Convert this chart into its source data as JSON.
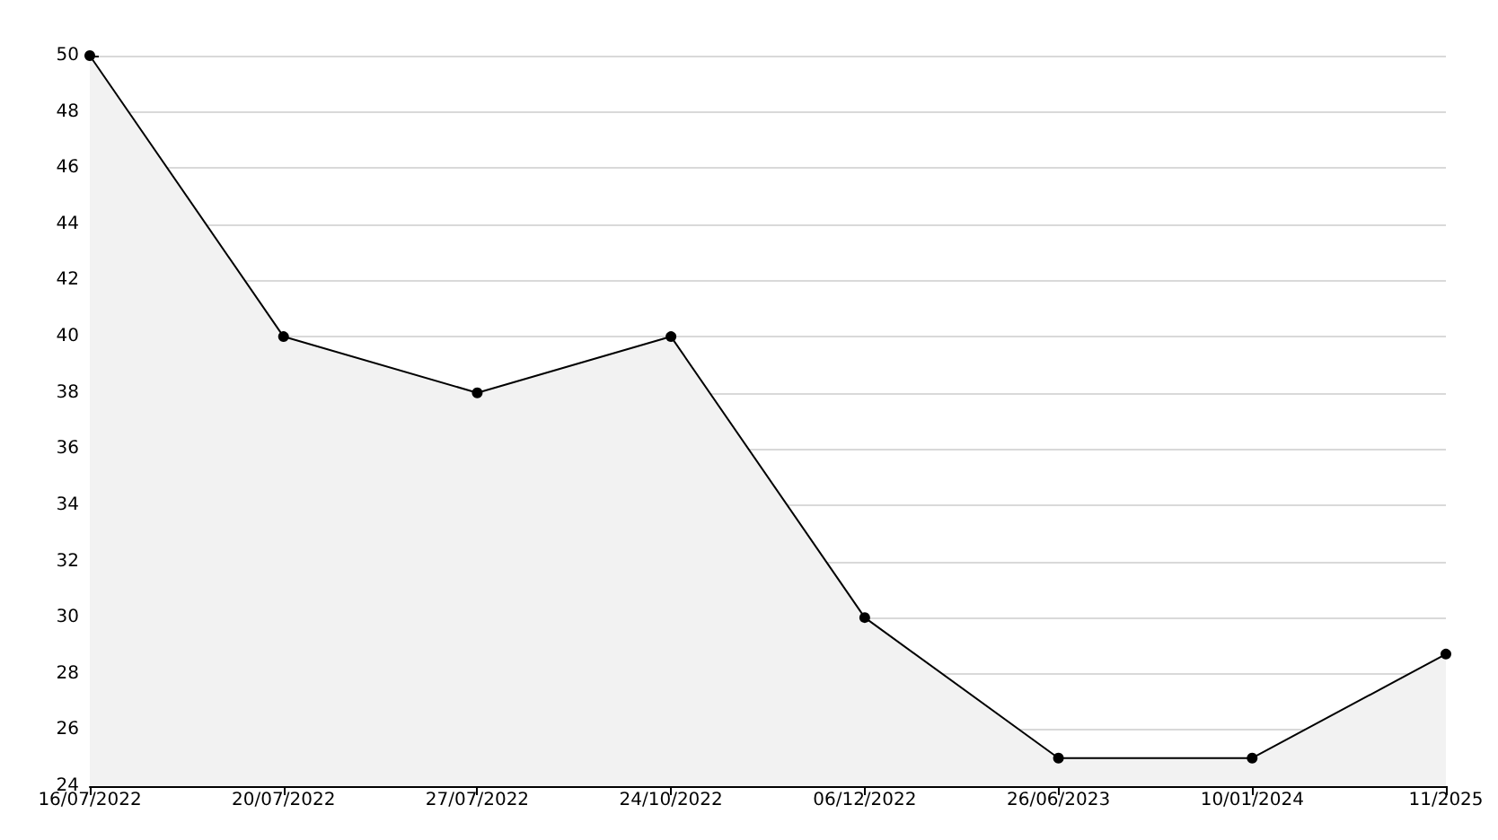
{
  "chart_data": {
    "type": "area",
    "categories": [
      "16/07/2022",
      "20/07/2022",
      "27/07/2022",
      "24/10/2022",
      "06/12/2022",
      "26/06/2023",
      "10/01/2024",
      "11/2025"
    ],
    "series": [
      {
        "color": "#000000",
        "values": [
          50,
          40,
          38,
          40,
          30,
          25,
          25,
          28.7
        ]
      }
    ],
    "ylim": [
      24,
      50
    ],
    "yticks": [
      24,
      26,
      28,
      30,
      32,
      34,
      36,
      38,
      40,
      42,
      44,
      46,
      48,
      50
    ],
    "grid": "y",
    "marker": "circle",
    "line_style": "solid"
  }
}
